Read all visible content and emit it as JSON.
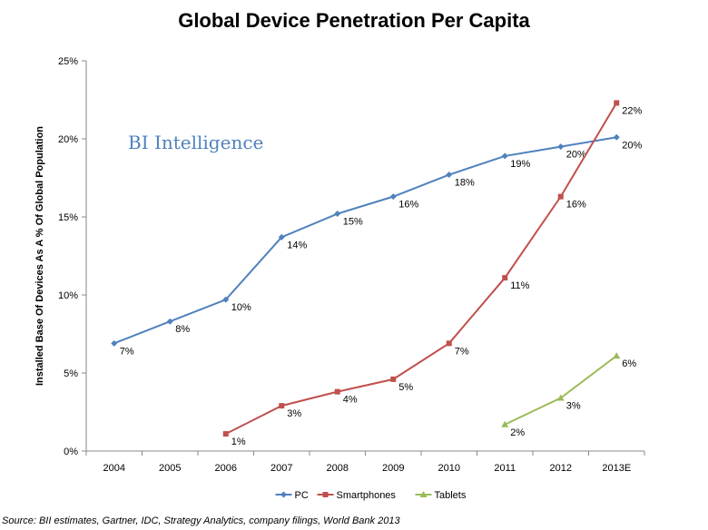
{
  "chart_data": {
    "type": "line",
    "title": "Global Device Penetration Per Capita",
    "ylabel": "Installed Base Of Devices As A % Of Global Population",
    "xlabel": "",
    "categories": [
      "2004",
      "2005",
      "2006",
      "2007",
      "2008",
      "2009",
      "2010",
      "2011",
      "2012",
      "2013E"
    ],
    "ylim": [
      0,
      25
    ],
    "yticks": [
      0,
      5,
      10,
      15,
      20,
      25
    ],
    "ytick_labels": [
      "0%",
      "5%",
      "10%",
      "15%",
      "20%",
      "25%"
    ],
    "grid": false,
    "legend_position": "bottom",
    "series": [
      {
        "name": "PC",
        "color": "#4f81bd",
        "marker": "diamond",
        "values": [
          6.9,
          8.3,
          9.7,
          13.7,
          15.2,
          16.3,
          17.7,
          18.9,
          19.5,
          20.1
        ],
        "labels": [
          "7%",
          "8%",
          "10%",
          "14%",
          "15%",
          "16%",
          "18%",
          "19%",
          "20%",
          "20%"
        ]
      },
      {
        "name": "Smartphones",
        "color": "#c0504d",
        "marker": "square",
        "values": [
          null,
          null,
          1.1,
          2.9,
          3.8,
          4.6,
          6.9,
          11.1,
          16.3,
          22.3
        ],
        "labels": [
          null,
          null,
          "1%",
          "3%",
          "4%",
          "5%",
          "7%",
          "11%",
          "16%",
          "22%"
        ]
      },
      {
        "name": "Tablets",
        "color": "#9bbb59",
        "marker": "triangle",
        "values": [
          null,
          null,
          null,
          null,
          null,
          null,
          null,
          1.7,
          3.4,
          6.1
        ],
        "labels": [
          null,
          null,
          null,
          null,
          null,
          null,
          null,
          "2%",
          "3%",
          "6%"
        ]
      }
    ],
    "watermark": {
      "text": "BI Intelligence",
      "color": "#4f81bd"
    },
    "source": "Source: BII estimates, Gartner, IDC, Strategy Analytics, company filings, World Bank 2013"
  }
}
